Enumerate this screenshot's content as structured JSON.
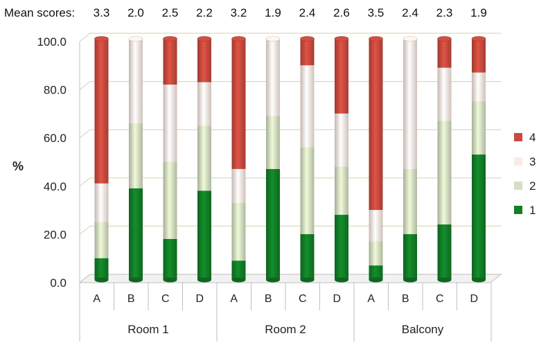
{
  "chart_data": {
    "type": "bar",
    "stacked": true,
    "mean_label": "Mean scores:",
    "mean_scores": [
      "3.3",
      "2.0",
      "2.5",
      "2.2",
      "3.2",
      "1.9",
      "2.4",
      "2.6",
      "3.5",
      "2.4",
      "2.3",
      "1.9"
    ],
    "ylabel": "%",
    "ylim": [
      0,
      100
    ],
    "yticks": [
      "0.0",
      "20.0",
      "40.0",
      "60.0",
      "80.0",
      "100.0"
    ],
    "grid": true,
    "legend_position": "right",
    "groups": [
      {
        "name": "Room 1",
        "categories": [
          "A",
          "B",
          "C",
          "D"
        ]
      },
      {
        "name": "Room 2",
        "categories": [
          "A",
          "B",
          "C",
          "D"
        ]
      },
      {
        "name": "Balcony",
        "categories": [
          "A",
          "B",
          "C",
          "D"
        ]
      }
    ],
    "series": [
      {
        "name": "1",
        "color": "#127f27",
        "values": [
          9,
          38,
          17,
          37,
          8,
          46,
          19,
          27,
          6,
          19,
          23,
          52
        ]
      },
      {
        "name": "2",
        "color": "#d5dfc2",
        "values": [
          15,
          27,
          32,
          27,
          24,
          22,
          36,
          20,
          10,
          27,
          43,
          22
        ]
      },
      {
        "name": "3",
        "color": "#fcebe3",
        "values": [
          16,
          35,
          32,
          18,
          14,
          32,
          34,
          22,
          13,
          54,
          22,
          12
        ]
      },
      {
        "name": "4",
        "color": "#c94a3e",
        "values": [
          60,
          0,
          19,
          18,
          54,
          0,
          11,
          31,
          71,
          0,
          12,
          14
        ]
      }
    ]
  }
}
